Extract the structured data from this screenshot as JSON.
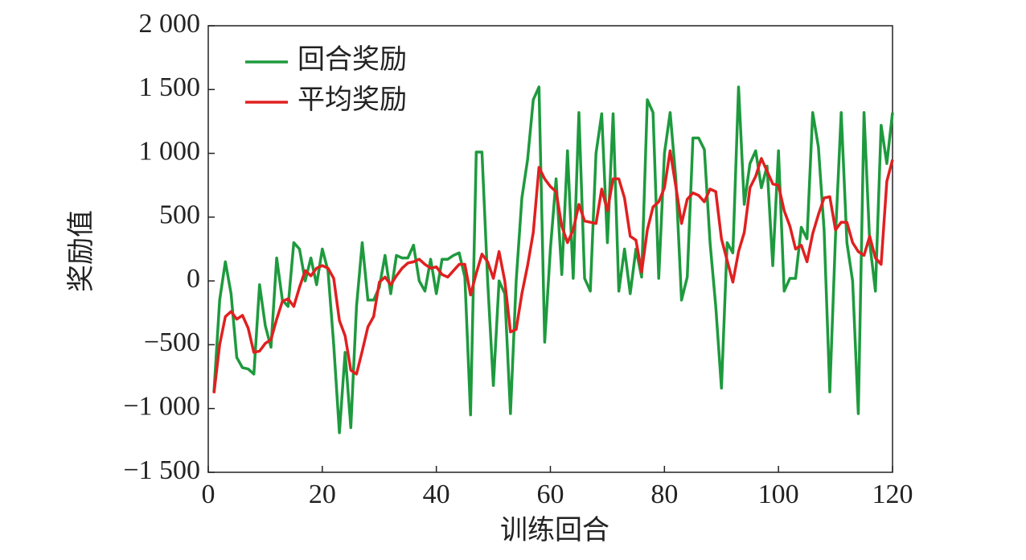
{
  "chart_data": {
    "type": "line",
    "xlabel": "训练回合",
    "ylabel": "奖励值",
    "x": [
      1,
      2,
      3,
      4,
      5,
      6,
      7,
      8,
      9,
      10,
      11,
      12,
      13,
      14,
      15,
      16,
      17,
      18,
      19,
      20,
      21,
      22,
      23,
      24,
      25,
      26,
      27,
      28,
      29,
      30,
      31,
      32,
      33,
      34,
      35,
      36,
      37,
      38,
      39,
      40,
      41,
      42,
      43,
      44,
      45,
      46,
      47,
      48,
      49,
      50,
      51,
      52,
      53,
      54,
      55,
      56,
      57,
      58,
      59,
      60,
      61,
      62,
      63,
      64,
      65,
      66,
      67,
      68,
      69,
      70,
      71,
      72,
      73,
      74,
      75,
      76,
      77,
      78,
      79,
      80,
      81,
      82,
      83,
      84,
      85,
      86,
      87,
      88,
      89,
      90,
      91,
      92,
      93,
      94,
      95,
      96,
      97,
      98,
      99,
      100,
      101,
      102,
      103,
      104,
      105,
      106,
      107,
      108,
      109,
      110,
      111,
      112,
      113,
      114,
      115,
      116,
      117,
      118,
      119,
      120
    ],
    "series": [
      {
        "name": "回合奖励",
        "color": "#1e9a3e",
        "values": [
          -870,
          -150,
          150,
          -100,
          -600,
          -680,
          -690,
          -730,
          -30,
          -350,
          -520,
          180,
          -150,
          -200,
          300,
          250,
          0,
          180,
          -30,
          250,
          80,
          -500,
          -1190,
          -560,
          -1150,
          -200,
          300,
          -150,
          -150,
          -50,
          200,
          -100,
          200,
          180,
          180,
          280,
          0,
          -80,
          170,
          -100,
          170,
          170,
          200,
          220,
          30,
          -1050,
          1010,
          1010,
          0,
          -820,
          0,
          -100,
          -1040,
          0,
          650,
          950,
          1420,
          1520,
          -480,
          250,
          800,
          50,
          1020,
          20,
          1320,
          20,
          -80,
          1000,
          1310,
          300,
          1310,
          -80,
          250,
          -100,
          250,
          30,
          1420,
          1320,
          20,
          1000,
          1320,
          800,
          -150,
          30,
          1120,
          1120,
          1030,
          300,
          -200,
          -840,
          300,
          220,
          1520,
          600,
          920,
          1020,
          730,
          900,
          120,
          1020,
          -80,
          20,
          20,
          420,
          330,
          1320,
          1050,
          400,
          -870,
          350,
          1320,
          300,
          0,
          -1040,
          1320,
          300,
          -80,
          1220,
          920,
          1320
        ]
      },
      {
        "name": "平均奖励",
        "color": "#e02020",
        "values": [
          -880,
          -500,
          -280,
          -240,
          -300,
          -270,
          -370,
          -560,
          -550,
          -490,
          -460,
          -300,
          -160,
          -140,
          -200,
          -50,
          80,
          40,
          100,
          120,
          100,
          20,
          -310,
          -430,
          -700,
          -730,
          -550,
          -360,
          -280,
          -10,
          30,
          -30,
          40,
          100,
          140,
          150,
          170,
          130,
          100,
          110,
          50,
          30,
          80,
          130,
          130,
          -110,
          60,
          210,
          150,
          20,
          230,
          0,
          -400,
          -380,
          -100,
          120,
          380,
          890,
          800,
          740,
          700,
          430,
          300,
          400,
          600,
          470,
          460,
          450,
          720,
          550,
          800,
          800,
          650,
          350,
          320,
          70,
          400,
          580,
          620,
          730,
          1020,
          740,
          450,
          640,
          690,
          670,
          620,
          720,
          700,
          330,
          160,
          -10,
          230,
          380,
          730,
          820,
          960,
          860,
          760,
          750,
          550,
          430,
          250,
          280,
          150,
          370,
          520,
          650,
          660,
          400,
          460,
          460,
          300,
          230,
          200,
          350,
          180,
          130,
          780,
          950
        ]
      }
    ],
    "xlim": [
      0,
      120
    ],
    "xticks": [
      0,
      20,
      40,
      60,
      80,
      100,
      120
    ],
    "ylim": [
      -1500,
      2000
    ],
    "yticks": [
      {
        "value": -1500,
        "label": "−1 500"
      },
      {
        "value": -1000,
        "label": "−1 000"
      },
      {
        "value": -500,
        "label": "−500"
      },
      0,
      500,
      {
        "value": 1000,
        "label": "1 000"
      },
      {
        "value": 1500,
        "label": "1 500"
      },
      {
        "value": 2000,
        "label": "2 000"
      }
    ],
    "legend": "upper left"
  }
}
